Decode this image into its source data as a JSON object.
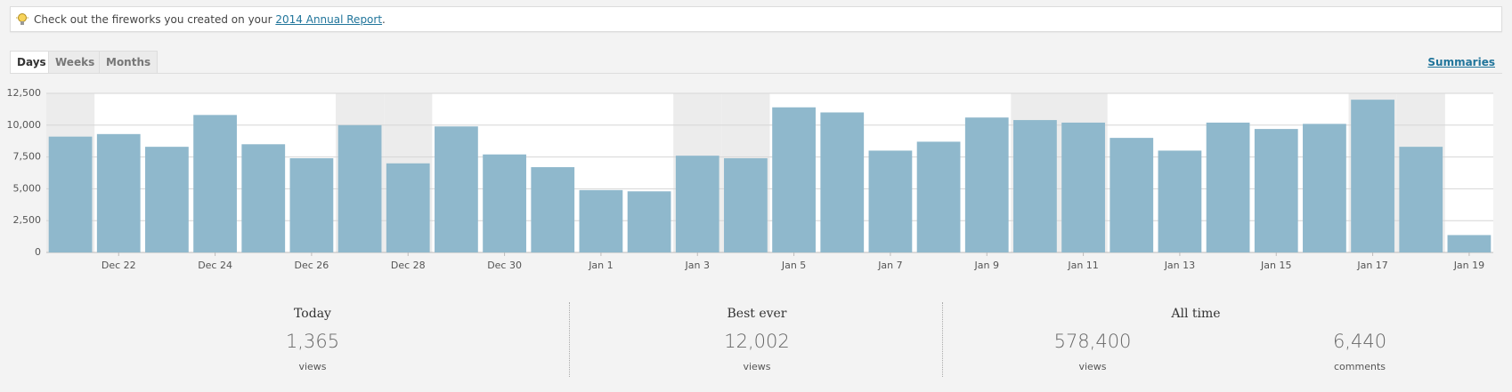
{
  "notice": {
    "text": "Check out the fireworks you created on your ",
    "link": "2014 Annual Report",
    "end": "."
  },
  "tabs": [
    "Days",
    "Weeks",
    "Months"
  ],
  "summaries_link": "Summaries",
  "chart_data": {
    "type": "bar",
    "categories": [
      null,
      "Dec 22",
      null,
      "Dec 24",
      null,
      "Dec 26",
      null,
      "Dec 28",
      null,
      "Dec 30",
      null,
      "Jan 1",
      null,
      "Jan 3",
      null,
      "Jan 5",
      null,
      "Jan 7",
      null,
      "Jan 9",
      null,
      "Jan 11",
      null,
      "Jan 13",
      null,
      "Jan 15",
      null,
      "Jan 17",
      null,
      "Jan 19"
    ],
    "values": [
      9100,
      9300,
      8300,
      10800,
      8500,
      7400,
      10000,
      7000,
      9900,
      7700,
      6700,
      4900,
      4800,
      7600,
      7400,
      11400,
      11000,
      8000,
      8700,
      10600,
      10400,
      10200,
      9000,
      8000,
      10200,
      9700,
      10100,
      12000,
      8300,
      1365
    ],
    "color": "#8fb8cc",
    "weekend": [
      0,
      6,
      7,
      13,
      14,
      20,
      21,
      27,
      28
    ],
    "ylim": [
      0,
      12500
    ],
    "yticks": [
      0,
      {
        "value": 2500,
        "label": "2,500"
      },
      {
        "value": 5000,
        "label": "5,000"
      },
      {
        "value": 7500,
        "label": "7,500"
      },
      {
        "value": 10000,
        "label": "10,000"
      },
      {
        "value": 12500,
        "label": "12,500"
      }
    ],
    "grid": true
  },
  "stats": [
    {
      "title": "Today",
      "number": "1,365",
      "unit": "views"
    },
    {
      "title": "Best ever",
      "number": "12,002",
      "unit": "views"
    },
    {
      "title": "All time",
      "items": [
        {
          "number": "578,400",
          "unit": "views"
        },
        {
          "number": "6,440",
          "unit": "comments"
        }
      ]
    }
  ]
}
